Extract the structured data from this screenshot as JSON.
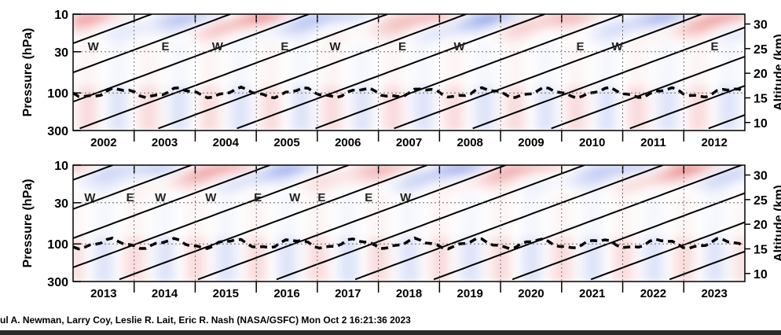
{
  "chart_data": [
    {
      "type": "heatmap",
      "years": [
        "2002",
        "2003",
        "2004",
        "2005",
        "2006",
        "2007",
        "2008",
        "2009",
        "2010",
        "2011",
        "2012"
      ],
      "ylabel": "Pressure (hPa)",
      "ylabel_right": "Altitude (km)",
      "yticks": [
        "10",
        "30",
        "100",
        "300"
      ],
      "yticks_right": [
        "30",
        "25",
        "20",
        "15",
        "10"
      ],
      "phase_labels": [
        {
          "label": "W",
          "t": 0.06,
          "p": 30
        },
        {
          "label": "E",
          "t": 0.275,
          "p": 30
        },
        {
          "label": "W",
          "t": 0.43,
          "p": 30
        },
        {
          "label": "E",
          "t": 0.63,
          "p": 30
        },
        {
          "label": "W",
          "t": 0.78,
          "p": 30
        },
        {
          "label": "E",
          "t": 0.98,
          "p": 30
        },
        {
          "label": "W",
          "t": 1.15,
          "p": 30
        },
        {
          "label": "E",
          "t": 1.51,
          "p": 30
        },
        {
          "label": "W",
          "t": 1.62,
          "p": 30
        },
        {
          "label": "E",
          "t": 1.91,
          "p": 30
        }
      ],
      "colors": {
        "positive": "#d7191c",
        "negative": "#2c4fd6"
      }
    },
    {
      "type": "heatmap",
      "years": [
        "2013",
        "2014",
        "2015",
        "2016",
        "2017",
        "2018",
        "2019",
        "2020",
        "2021",
        "2022",
        "2023"
      ],
      "ylabel": "Pressure (hPa)",
      "ylabel_right": "Altitude (km)",
      "yticks": [
        "10",
        "30",
        "100",
        "300"
      ],
      "yticks_right": [
        "30",
        "25",
        "20",
        "15",
        "10"
      ],
      "phase_labels": [
        {
          "label": "W",
          "t": 0.05,
          "p": 30
        },
        {
          "label": "E",
          "t": 0.17,
          "p": 30
        },
        {
          "label": "W",
          "t": 0.26,
          "p": 30
        },
        {
          "label": "W",
          "t": 0.41,
          "p": 30
        },
        {
          "label": "E",
          "t": 0.55,
          "p": 30
        },
        {
          "label": "W",
          "t": 0.66,
          "p": 30
        },
        {
          "label": "E",
          "t": 0.74,
          "p": 30
        },
        {
          "label": "E",
          "t": 0.88,
          "p": 30
        },
        {
          "label": "W",
          "t": 0.99,
          "p": 30
        }
      ],
      "colors": {
        "positive": "#d7191c",
        "negative": "#2c4fd6"
      }
    }
  ],
  "credit": "ul A. Newman, Larry Coy, Leslie R. Lait, Eric R. Nash (NASA/GSFC) Mon Oct  2 16:21:36 2023"
}
